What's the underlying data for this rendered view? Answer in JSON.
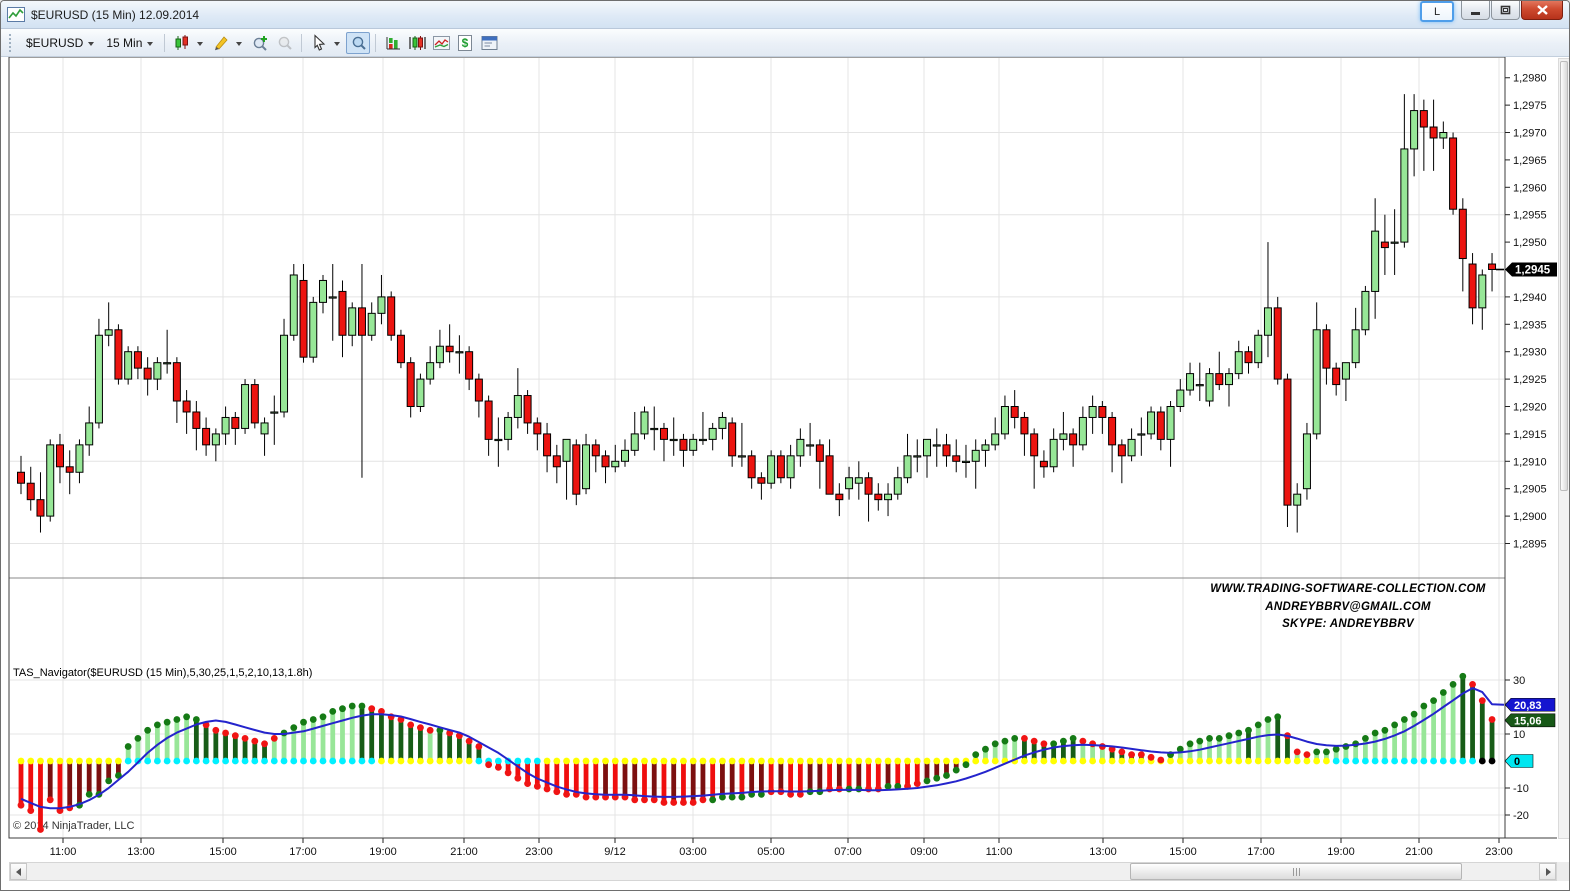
{
  "window": {
    "title": "$EURUSD (15 Min)  12.09.2014",
    "link_button": "L"
  },
  "toolbar": {
    "instrument": "$EURUSD",
    "interval": "15 Min",
    "icons": [
      "candlestick-style-icon",
      "drawing-pencil-icon",
      "zoom-in-icon",
      "zoom-out-icon",
      "cursor-icon",
      "data-box-icon",
      "bar-type-icon",
      "candle-type-icon",
      "line-chart-icon",
      "dollar-report-icon",
      "panel-properties-icon"
    ]
  },
  "chart": {
    "copyright": "© 2014 NinjaTrader, LLC",
    "indicator_label": "TAS_Navigator($EURUSD (15 Min),5,30,25,1,5,2,10,13,1.8h)",
    "watermark": [
      "WWW.TRADING-SOFTWARE-COLLECTION.COM",
      "ANDREYBBRV@GMAIL.COM",
      "SKYPE: ANDREYBBRV"
    ]
  },
  "chart_data": {
    "type": "candlestick_with_histogram_indicator",
    "title": "$EURUSD (15 Min) 12.09.2014",
    "grid": true,
    "price_base": 1.29,
    "pip_unit": 0.0001,
    "price_axis": {
      "labels": [
        "1,2980",
        "1,2975",
        "1,2970",
        "1,2965",
        "1,2960",
        "1,2955",
        "1,2950",
        "1,2945",
        "1,2940",
        "1,2935",
        "1,2930",
        "1,2925",
        "1,2920",
        "1,2915",
        "1,2910",
        "1,2905",
        "1,2900",
        "1,2895"
      ],
      "top_value": 1.298,
      "step": 0.0005,
      "gridline_prices": [
        1.297,
        1.2955,
        1.294,
        1.2925,
        1.291,
        1.2895
      ],
      "last_price_label": "1,2945",
      "last_price_value": 1.2945
    },
    "time_ticks": [
      [
        "11:00",
        62
      ],
      [
        "13:00",
        140
      ],
      [
        "15:00",
        222
      ],
      [
        "17:00",
        302
      ],
      [
        "19:00",
        382
      ],
      [
        "21:00",
        463
      ],
      [
        "23:00",
        538
      ],
      [
        "9/12",
        614
      ],
      [
        "03:00",
        692
      ],
      [
        "05:00",
        770
      ],
      [
        "07:00",
        847
      ],
      [
        "09:00",
        923
      ],
      [
        "11:00",
        998
      ],
      [
        "13:00",
        1102
      ],
      [
        "15:00",
        1182
      ],
      [
        "17:00",
        1260
      ],
      [
        "19:00",
        1340
      ],
      [
        "21:00",
        1418
      ],
      [
        "23:00",
        1498
      ]
    ],
    "candles_ohlc_pips": [
      [
        8,
        11,
        4,
        6
      ],
      [
        6,
        9,
        1,
        3
      ],
      [
        3,
        8,
        -3,
        0
      ],
      [
        0,
        14,
        -1,
        13
      ],
      [
        13,
        15,
        6,
        9
      ],
      [
        9,
        12,
        4,
        8
      ],
      [
        8,
        14,
        6,
        13
      ],
      [
        13,
        20,
        11,
        17
      ],
      [
        17,
        36,
        16,
        33
      ],
      [
        33,
        39,
        31,
        34
      ],
      [
        34,
        35,
        24,
        25
      ],
      [
        25,
        31,
        24,
        30
      ],
      [
        30,
        31,
        25,
        27
      ],
      [
        27,
        29,
        22,
        25
      ],
      [
        25,
        29,
        23,
        28
      ],
      [
        28,
        34,
        26,
        28
      ],
      [
        28,
        29,
        17,
        21
      ],
      [
        21,
        23,
        15,
        19
      ],
      [
        19,
        21,
        12,
        16
      ],
      [
        16,
        18,
        11,
        13
      ],
      [
        13,
        16,
        10,
        15
      ],
      [
        15,
        20,
        13,
        18
      ],
      [
        18,
        19,
        13,
        16
      ],
      [
        16,
        25,
        15,
        24
      ],
      [
        24,
        25,
        16,
        17
      ],
      [
        15,
        18,
        11,
        17
      ],
      [
        19,
        22,
        13,
        19
      ],
      [
        19,
        36,
        18,
        33
      ],
      [
        33,
        46,
        32,
        44
      ],
      [
        43,
        46,
        28,
        29
      ],
      [
        29,
        40,
        28,
        39
      ],
      [
        39,
        44,
        37,
        43
      ],
      [
        40,
        46,
        32,
        40
      ],
      [
        41,
        43,
        29,
        33
      ],
      [
        33,
        39,
        31,
        38
      ],
      [
        38,
        46,
        7,
        33
      ],
      [
        33,
        39,
        32,
        37
      ],
      [
        37,
        44,
        35,
        40
      ],
      [
        40,
        41,
        32,
        33
      ],
      [
        33,
        34,
        27,
        28
      ],
      [
        28,
        29,
        18,
        20
      ],
      [
        20,
        26,
        19,
        25
      ],
      [
        25,
        31,
        24,
        28
      ],
      [
        28,
        34,
        27,
        31
      ],
      [
        31,
        35,
        28,
        30
      ],
      [
        30,
        33,
        26,
        30
      ],
      [
        30,
        31,
        23,
        25
      ],
      [
        25,
        26,
        18,
        21
      ],
      [
        21,
        22,
        11,
        14
      ],
      [
        14,
        18,
        9,
        14
      ],
      [
        14,
        19,
        12,
        18
      ],
      [
        18,
        27,
        16,
        22
      ],
      [
        22,
        23,
        15,
        17
      ],
      [
        17,
        18,
        12,
        15
      ],
      [
        15,
        17,
        8,
        11
      ],
      [
        11,
        13,
        6,
        9
      ],
      [
        10,
        14,
        3,
        14
      ],
      [
        13,
        14,
        2,
        4
      ],
      [
        5,
        15,
        4,
        13
      ],
      [
        13,
        14,
        8,
        11
      ],
      [
        11,
        12,
        6,
        9
      ],
      [
        9,
        13,
        8,
        10
      ],
      [
        10,
        14,
        9,
        12
      ],
      [
        12,
        19,
        11,
        15
      ],
      [
        15,
        20,
        14,
        19
      ],
      [
        16,
        20,
        12,
        16
      ],
      [
        16,
        17,
        10,
        14
      ],
      [
        14,
        18,
        11,
        14
      ],
      [
        14,
        15,
        9,
        12
      ],
      [
        12,
        15,
        11,
        14
      ],
      [
        14,
        19,
        13,
        14
      ],
      [
        14,
        17,
        12,
        16
      ],
      [
        16,
        19,
        14,
        18
      ],
      [
        17,
        18,
        9,
        11
      ],
      [
        11,
        17,
        9,
        11
      ],
      [
        11,
        12,
        5,
        7
      ],
      [
        7,
        8,
        3,
        6
      ],
      [
        6,
        12,
        5,
        11
      ],
      [
        11,
        12,
        6,
        7
      ],
      [
        7,
        13,
        5,
        11
      ],
      [
        11,
        16,
        9,
        14
      ],
      [
        13,
        17,
        11,
        13
      ],
      [
        13,
        14,
        5,
        10
      ],
      [
        11,
        14,
        4,
        4
      ],
      [
        4,
        6,
        0,
        3
      ],
      [
        5,
        9,
        3,
        7
      ],
      [
        6,
        10,
        3,
        7
      ],
      [
        7,
        8,
        -1,
        4
      ],
      [
        4,
        6,
        1,
        3
      ],
      [
        3,
        6,
        0,
        4
      ],
      [
        4,
        9,
        3,
        7
      ],
      [
        7,
        15,
        6,
        11
      ],
      [
        11,
        14,
        8,
        11
      ],
      [
        11,
        14,
        7,
        14
      ],
      [
        13,
        16,
        9,
        13
      ],
      [
        13,
        15,
        9,
        11
      ],
      [
        11,
        14,
        8,
        10
      ],
      [
        10,
        13,
        7,
        10
      ],
      [
        10,
        14,
        5,
        12
      ],
      [
        12,
        14,
        9,
        13
      ],
      [
        13,
        18,
        12,
        15
      ],
      [
        15,
        22,
        14,
        20
      ],
      [
        20,
        23,
        16,
        18
      ],
      [
        18,
        19,
        11,
        15
      ],
      [
        15,
        16,
        5,
        11
      ],
      [
        10,
        12,
        7,
        9
      ],
      [
        9,
        16,
        8,
        14
      ],
      [
        14,
        19,
        12,
        15
      ],
      [
        15,
        16,
        9,
        13
      ],
      [
        13,
        20,
        12,
        18
      ],
      [
        18,
        22,
        15,
        20
      ],
      [
        20,
        21,
        15,
        18
      ],
      [
        18,
        19,
        8,
        13
      ],
      [
        13,
        14,
        6,
        11
      ],
      [
        11,
        16,
        10,
        14
      ],
      [
        15,
        18,
        11,
        15
      ],
      [
        15,
        20,
        14,
        19
      ],
      [
        19,
        20,
        12,
        14
      ],
      [
        14,
        21,
        9,
        20
      ],
      [
        20,
        25,
        19,
        23
      ],
      [
        23,
        28,
        22,
        26
      ],
      [
        24,
        28,
        21,
        24
      ],
      [
        21,
        27,
        20,
        26
      ],
      [
        26,
        30,
        23,
        24
      ],
      [
        24,
        27,
        20,
        26
      ],
      [
        26,
        32,
        25,
        30
      ],
      [
        30,
        31,
        26,
        28
      ],
      [
        28,
        34,
        27,
        33
      ],
      [
        33,
        50,
        29,
        38
      ],
      [
        38,
        40,
        24,
        25
      ],
      [
        25,
        26,
        -2,
        2
      ],
      [
        2,
        6,
        -3,
        4
      ],
      [
        5,
        17,
        3,
        15
      ],
      [
        15,
        39,
        14,
        34
      ],
      [
        34,
        35,
        24,
        27
      ],
      [
        27,
        28,
        22,
        24
      ],
      [
        25,
        28,
        21,
        28
      ],
      [
        28,
        38,
        27,
        34
      ],
      [
        34,
        42,
        33,
        41
      ],
      [
        41,
        58,
        36,
        52
      ],
      [
        50,
        55,
        44,
        49
      ],
      [
        50,
        56,
        44,
        50
      ],
      [
        50,
        77,
        49,
        67
      ],
      [
        67,
        77,
        62,
        74
      ],
      [
        74,
        76,
        63,
        71
      ],
      [
        71,
        76,
        63,
        69
      ],
      [
        69,
        72,
        67,
        70
      ],
      [
        69,
        70,
        55,
        56
      ],
      [
        56,
        58,
        41,
        47
      ],
      [
        46,
        48,
        35,
        38
      ],
      [
        38,
        45,
        34,
        44
      ],
      [
        46,
        48,
        41,
        45
      ]
    ],
    "indicator": {
      "name": "TAS_Navigator",
      "parameters": "5,30,25,1,5,2,10,13,1.8h",
      "axis_ticks": [
        30,
        10,
        -10,
        -20
      ],
      "markers": [
        {
          "text": "20,83",
          "value": 20.83,
          "color": "#1515cf",
          "text_color": "#ffffff"
        },
        {
          "text": "15,06",
          "value": 15.06,
          "color": "#175817",
          "text_color": "#ffffff"
        },
        {
          "text": "0",
          "value": 0,
          "color": "#00e6f0",
          "text_color": "#000000"
        }
      ],
      "values": [
        -16,
        -18,
        -25,
        -14,
        -18,
        -17,
        -16,
        -12,
        -12,
        -7,
        -5,
        5,
        8,
        11,
        13,
        14,
        15,
        16,
        15,
        13,
        11,
        10,
        9,
        8,
        7,
        6,
        8,
        10,
        12,
        14,
        15,
        16,
        18,
        19,
        20,
        20,
        19,
        18,
        16,
        15,
        13,
        12,
        11,
        11,
        10,
        9,
        7,
        5,
        -1,
        -2,
        -4,
        -6,
        -8,
        -9,
        -10,
        -11,
        -12,
        -12,
        -13,
        -13,
        -13,
        -13,
        -13,
        -14,
        -14,
        -14,
        -15,
        -15,
        -15,
        -15,
        -14,
        -14,
        -13,
        -13,
        -13,
        -12,
        -12,
        -11,
        -11,
        -12,
        -12,
        -11,
        -11,
        -10,
        -10,
        -10,
        -10,
        -10,
        -10,
        -9,
        -9,
        -9,
        -8,
        -7,
        -6,
        -5,
        -3,
        -1,
        2,
        4,
        6,
        7,
        8,
        8,
        7,
        6,
        6,
        7,
        8,
        7,
        6,
        5,
        4,
        3,
        2,
        2,
        1,
        0,
        2,
        4,
        6,
        7,
        8,
        8,
        9,
        10,
        11,
        13,
        15,
        16,
        9,
        3,
        2,
        3,
        3,
        4,
        5,
        6,
        8,
        10,
        11,
        13,
        15,
        17,
        20,
        22,
        25,
        28,
        31,
        28,
        22,
        15
      ],
      "bar_colors": "RRRMRMMMMMMLLLLLLLDDDDDDDDLLLLLLLLLDDDDDDDLDDDDDRRRRRRRRRRRRMRMMRMRMRMMRMMRMMRMRRMMRMRMRRMRRRMMMMMLLLLLDDDDDDLLLDDDDDDLLLLLLLLDLLDDLLLLLLLLLLLLLLLLLDDDD",
      "dot_colors": "rrrrrrgggggggggggggrrrrrrrrgggggggggrrrrrrrgrrrrrrrrrrrrrrrrrrrrrrrrrrrggggggrrrrggrrggrrggrrggggggggggrrrgggrrrrrrrrrggggggggggggrrrggggggggggggggggrrr",
      "zero_dots": "yyyyyyyyyyyccccccccccccccccccccccccccyyyyyyyyyycccccccyyyyyyyyyyyyyyyyyyyyyyyyyyyyyyyyyyyyyyyyyyyyyyyyyyyyyyyyyyyyyyyyyyyyyyyyyyyyyyyyyccccccccccccccc",
      "line_values": [
        -14,
        -15.5,
        -17,
        -17.5,
        -17.5,
        -17,
        -16,
        -14.5,
        -12.5,
        -10,
        -7,
        -4,
        -0.5,
        3,
        6,
        8.5,
        10.5,
        12,
        13.5,
        14.5,
        15,
        14.5,
        13.5,
        12.5,
        11.5,
        10.5,
        10,
        10,
        10.5,
        11,
        12,
        13,
        14,
        15,
        16,
        16.8,
        17.3,
        17.3,
        17,
        16.5,
        15.5,
        14.5,
        13.5,
        12.5,
        11.5,
        10.5,
        9,
        7,
        5,
        3,
        0.5,
        -2,
        -4.5,
        -6.5,
        -8,
        -9.5,
        -10.5,
        -11.5,
        -12,
        -12.3,
        -12.5,
        -12.5,
        -12.5,
        -12.7,
        -13,
        -13.2,
        -13.3,
        -13.3,
        -13.2,
        -13,
        -12.8,
        -12.5,
        -12.2,
        -12,
        -11.8,
        -11.5,
        -11.3,
        -11.2,
        -11.2,
        -11.3,
        -11.3,
        -11.2,
        -11,
        -10.8,
        -10.7,
        -10.7,
        -10.7,
        -10.8,
        -10.8,
        -10.7,
        -10.5,
        -10.3,
        -10,
        -9.5,
        -9,
        -8.3,
        -7.5,
        -6.5,
        -5.3,
        -4,
        -2.5,
        -1,
        0.5,
        2,
        3.2,
        4.2,
        5,
        5.5,
        5.8,
        6,
        5.9,
        5.7,
        5.4,
        5,
        4.5,
        4,
        3.5,
        3.2,
        3,
        3.2,
        3.6,
        4.2,
        5,
        5.8,
        6.6,
        7.4,
        8.2,
        9,
        9.6,
        9.8,
        9.3,
        8.3,
        7.2,
        6.3,
        5.8,
        5.6,
        5.7,
        6,
        6.5,
        7.2,
        8.2,
        9.5,
        11,
        13,
        15.2,
        17.5,
        20,
        22.5,
        25,
        27,
        25.5,
        21
      ]
    }
  }
}
